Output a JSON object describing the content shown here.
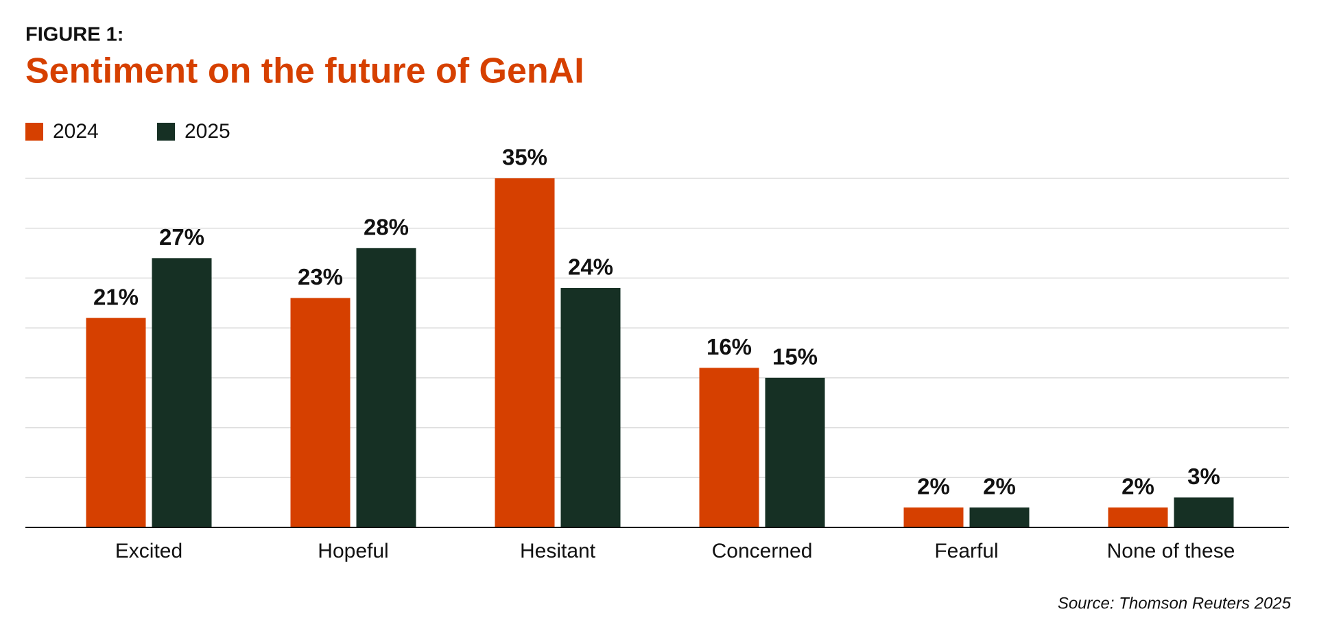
{
  "chart_data": {
    "type": "grouped_bar",
    "figure_label": "FIGURE 1:",
    "title": "Sentiment on the future of GenAI",
    "source": "Source: Thomson Reuters 2025",
    "categories": [
      "Excited",
      "Hopeful",
      "Hesitant",
      "Concerned",
      "Fearful",
      "None of these"
    ],
    "series": [
      {
        "name": "2024",
        "color": "#d64000",
        "values": [
          21,
          23,
          35,
          16,
          2,
          2
        ],
        "value_labels": [
          "21%",
          "23%",
          "35%",
          "16%",
          "2%",
          "2%"
        ]
      },
      {
        "name": "2025",
        "color": "#163024",
        "values": [
          27,
          28,
          24,
          15,
          2,
          3
        ],
        "value_labels": [
          "27%",
          "28%",
          "24%",
          "15%",
          "2%",
          "3%"
        ]
      }
    ],
    "ylim": [
      0,
      35
    ],
    "yticks": [
      0,
      5,
      10,
      15,
      20,
      25,
      30,
      35
    ],
    "grid": true,
    "legend": "top-left"
  }
}
